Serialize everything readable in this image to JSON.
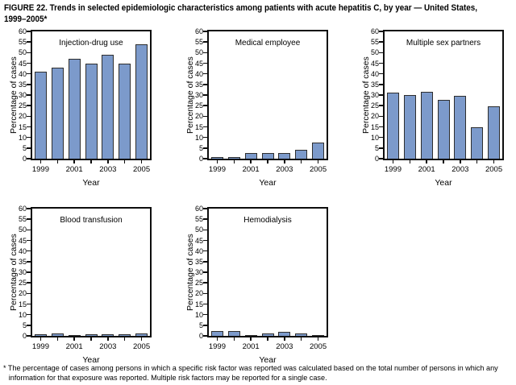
{
  "figure": {
    "title": "FIGURE 22. Trends in selected epidemiologic characteristics among patients with acute hepatitis C, by year — United States,\n1999–2005*",
    "footnote": "* The percentage of cases among persons in which a specific risk factor was reported was calculated based on the total number of persons in which any\ninformation for that exposure was reported. Multiple risk factors may be reported for a single case."
  },
  "chart_config": {
    "xlabel": "Year",
    "ylabel": "Percentage of cases",
    "ylim": [
      0,
      60
    ],
    "ytick_step": 5,
    "xtick_labels": [
      "1999",
      "2001",
      "2003",
      "2005"
    ],
    "xtick_label_positions": [
      0,
      2,
      4,
      6
    ],
    "grid": "off",
    "bar_fill": "#7C9ACB",
    "bar_border": "#2E2E2E",
    "axis_color": "#0D0D0D"
  },
  "chart_data": [
    {
      "type": "bar",
      "title": "Injection-drug use",
      "categories": [
        1999,
        2000,
        2001,
        2002,
        2003,
        2004,
        2005
      ],
      "values": [
        41,
        43,
        47,
        45,
        49,
        45,
        54
      ],
      "xlabel": "Year",
      "ylabel": "Percentage of cases",
      "ylim": [
        0,
        60
      ]
    },
    {
      "type": "bar",
      "title": "Medical employee",
      "categories": [
        1999,
        2000,
        2001,
        2002,
        2003,
        2004,
        2005
      ],
      "values": [
        0.8,
        0.8,
        2.7,
        2.8,
        2.6,
        4.3,
        7.7
      ],
      "xlabel": "Year",
      "ylabel": "Percentage of cases",
      "ylim": [
        0,
        60
      ]
    },
    {
      "type": "bar",
      "title": "Multiple sex partners",
      "categories": [
        1999,
        2000,
        2001,
        2002,
        2003,
        2004,
        2005
      ],
      "values": [
        31,
        30,
        31.7,
        27.7,
        29.5,
        15,
        24.6
      ],
      "xlabel": "Year",
      "ylabel": "Percentage of cases",
      "ylim": [
        0,
        60
      ]
    },
    {
      "type": "bar",
      "title": "Blood transfusion",
      "categories": [
        1999,
        2000,
        2001,
        2002,
        2003,
        2004,
        2005
      ],
      "values": [
        0.8,
        1.1,
        0.2,
        0.6,
        0.8,
        0.8,
        1.2
      ],
      "xlabel": "Year",
      "ylabel": "Percentage of cases",
      "ylim": [
        0,
        60
      ]
    },
    {
      "type": "bar",
      "title": "Hemodialysis",
      "categories": [
        1999,
        2000,
        2001,
        2002,
        2003,
        2004,
        2005
      ],
      "values": [
        2.4,
        2.1,
        0.1,
        1.0,
        2.0,
        1.2,
        0.5
      ],
      "xlabel": "Year",
      "ylabel": "Percentage of cases",
      "ylim": [
        0,
        60
      ]
    }
  ]
}
